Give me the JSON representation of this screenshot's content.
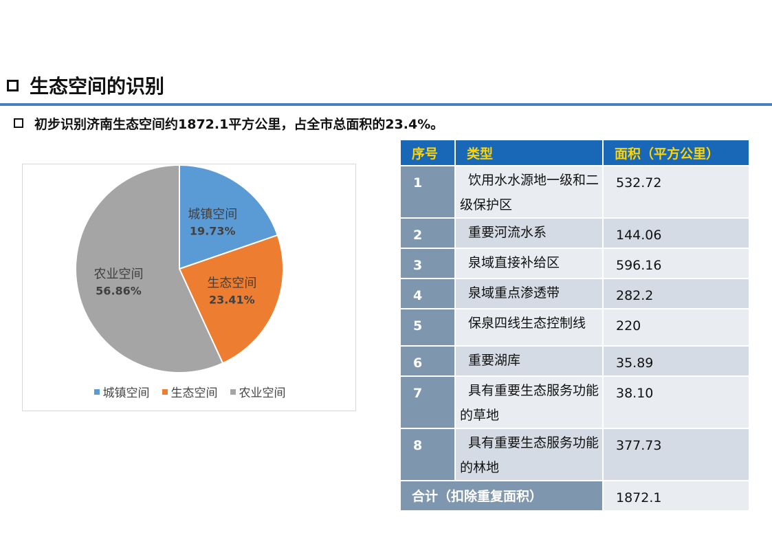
{
  "header": {
    "title": "生态空间的识别",
    "subtitle": "初步识别济南生态空间约1872.1平方公里，占全市总面积的23.4%。"
  },
  "chart_data": {
    "type": "pie",
    "slices": [
      {
        "name": "城镇空间",
        "value": 19.73,
        "label": "19.73%",
        "color": "#5b9bd5"
      },
      {
        "name": "生态空间",
        "value": 23.41,
        "label": "23.41%",
        "color": "#ed7d31"
      },
      {
        "name": "农业空间",
        "value": 56.86,
        "label": "56.86%",
        "color": "#a5a5a5"
      }
    ],
    "legend": [
      "城镇空间",
      "生态空间",
      "农业空间"
    ],
    "legend_position": "bottom"
  },
  "table": {
    "headers": [
      "序号",
      "类型",
      "面积（平方公里）"
    ],
    "rows": [
      {
        "no": "1",
        "type": "饮用水水源地一级和二级保护区",
        "area": "532.72"
      },
      {
        "no": "2",
        "type": "重要河流水系",
        "area": "144.06"
      },
      {
        "no": "3",
        "type": "泉域直接补给区",
        "area": "596.16"
      },
      {
        "no": "4",
        "type": "泉域重点渗透带",
        "area": "282.2"
      },
      {
        "no": "5",
        "type": "保泉四线生态控制线",
        "area": "220"
      },
      {
        "no": "6",
        "type": "重要湖库",
        "area": "35.89"
      },
      {
        "no": "7",
        "type": "具有重要生态服务功能的草地",
        "area": "38.10"
      },
      {
        "no": "8",
        "type": "具有重要生态服务功能的林地",
        "area": "377.73"
      }
    ],
    "total_label": "合计（扣除重复面积）",
    "total_value": "1872.1"
  }
}
